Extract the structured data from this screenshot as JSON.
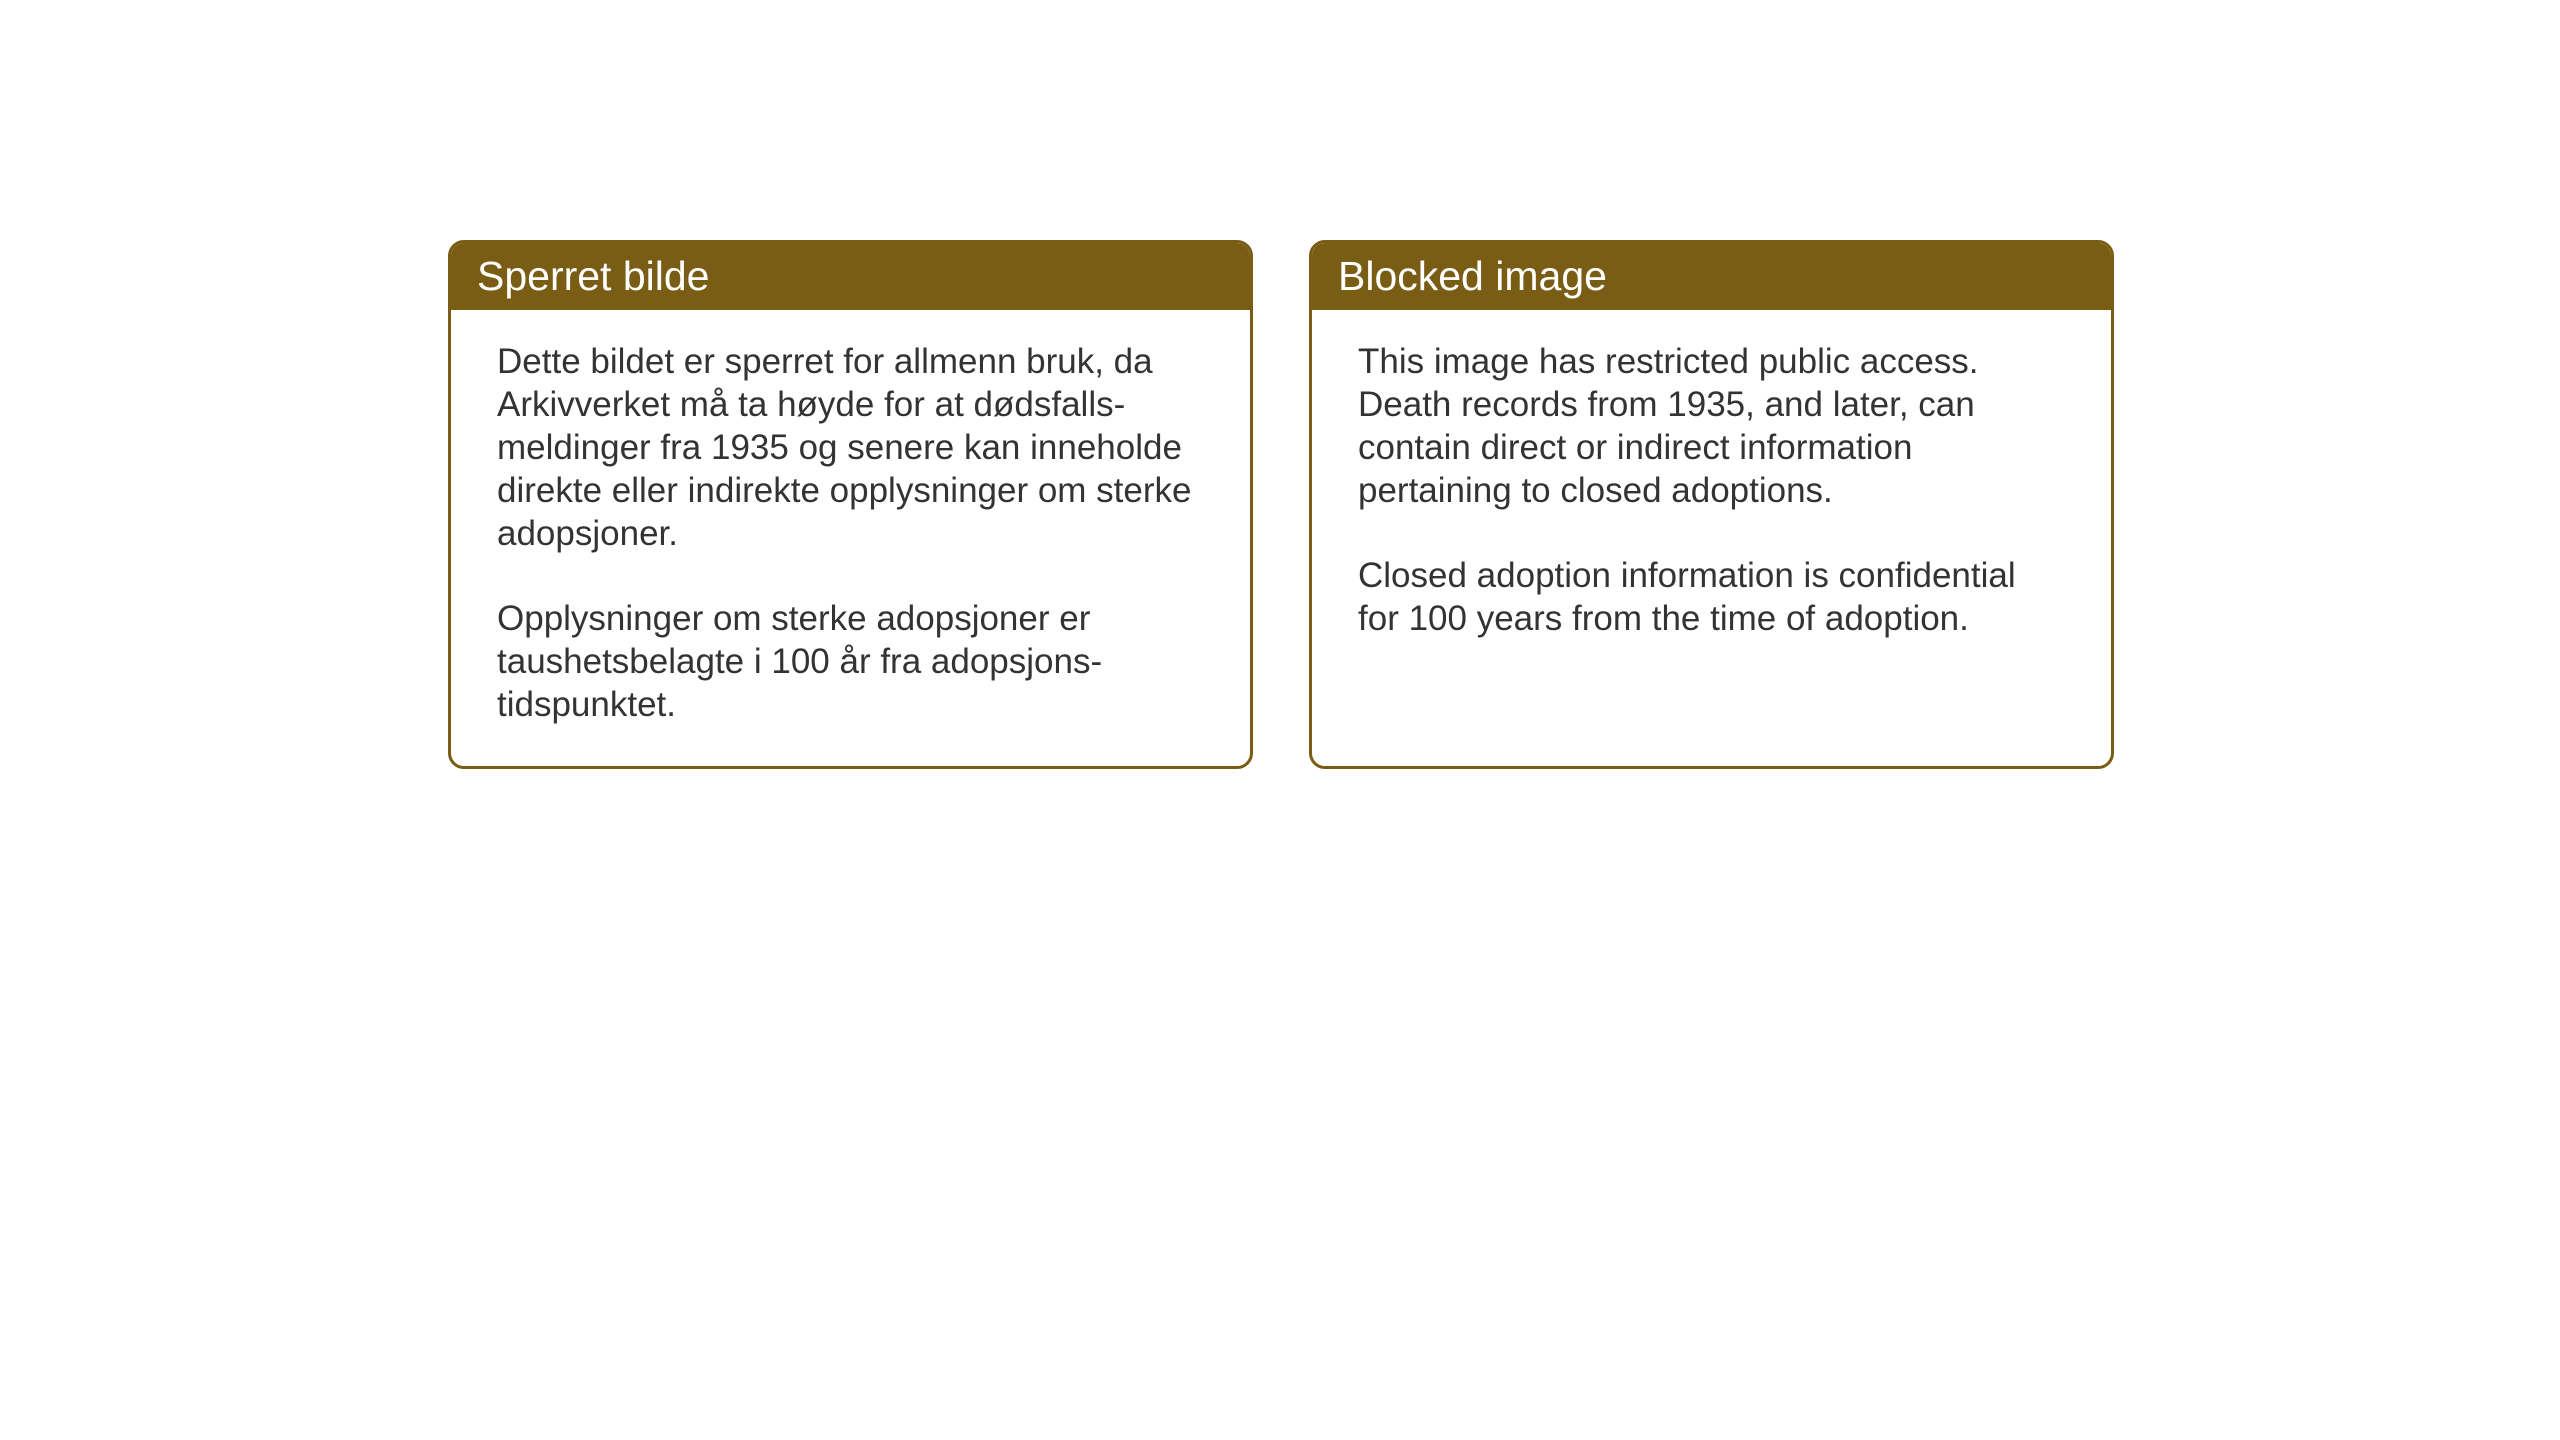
{
  "cards": {
    "left": {
      "header": "Sperret bilde",
      "paragraph1": "Dette bildet er sperret for allmenn bruk, da Arkivverket må ta høyde for at dødsfalls-meldinger fra 1935 og senere kan inneholde direkte eller indirekte opplysninger om sterke adopsjoner.",
      "paragraph2": "Opplysninger om sterke adopsjoner er taushetsbelagte i 100 år fra adopsjons-tidspunktet."
    },
    "right": {
      "header": "Blocked image",
      "paragraph1": "This image has restricted public access. Death records from 1935, and later, can contain direct or indirect information pertaining to closed adoptions.",
      "paragraph2": "Closed adoption information is confidential for 100 years from the time of adoption."
    }
  },
  "styling": {
    "header_bg_color": "#7a5d14",
    "header_text_color": "#ffffff",
    "border_color": "#7a5d14",
    "body_text_color": "#333333",
    "background_color": "#ffffff",
    "border_radius": 16,
    "header_fontsize": 41,
    "body_fontsize": 35
  }
}
